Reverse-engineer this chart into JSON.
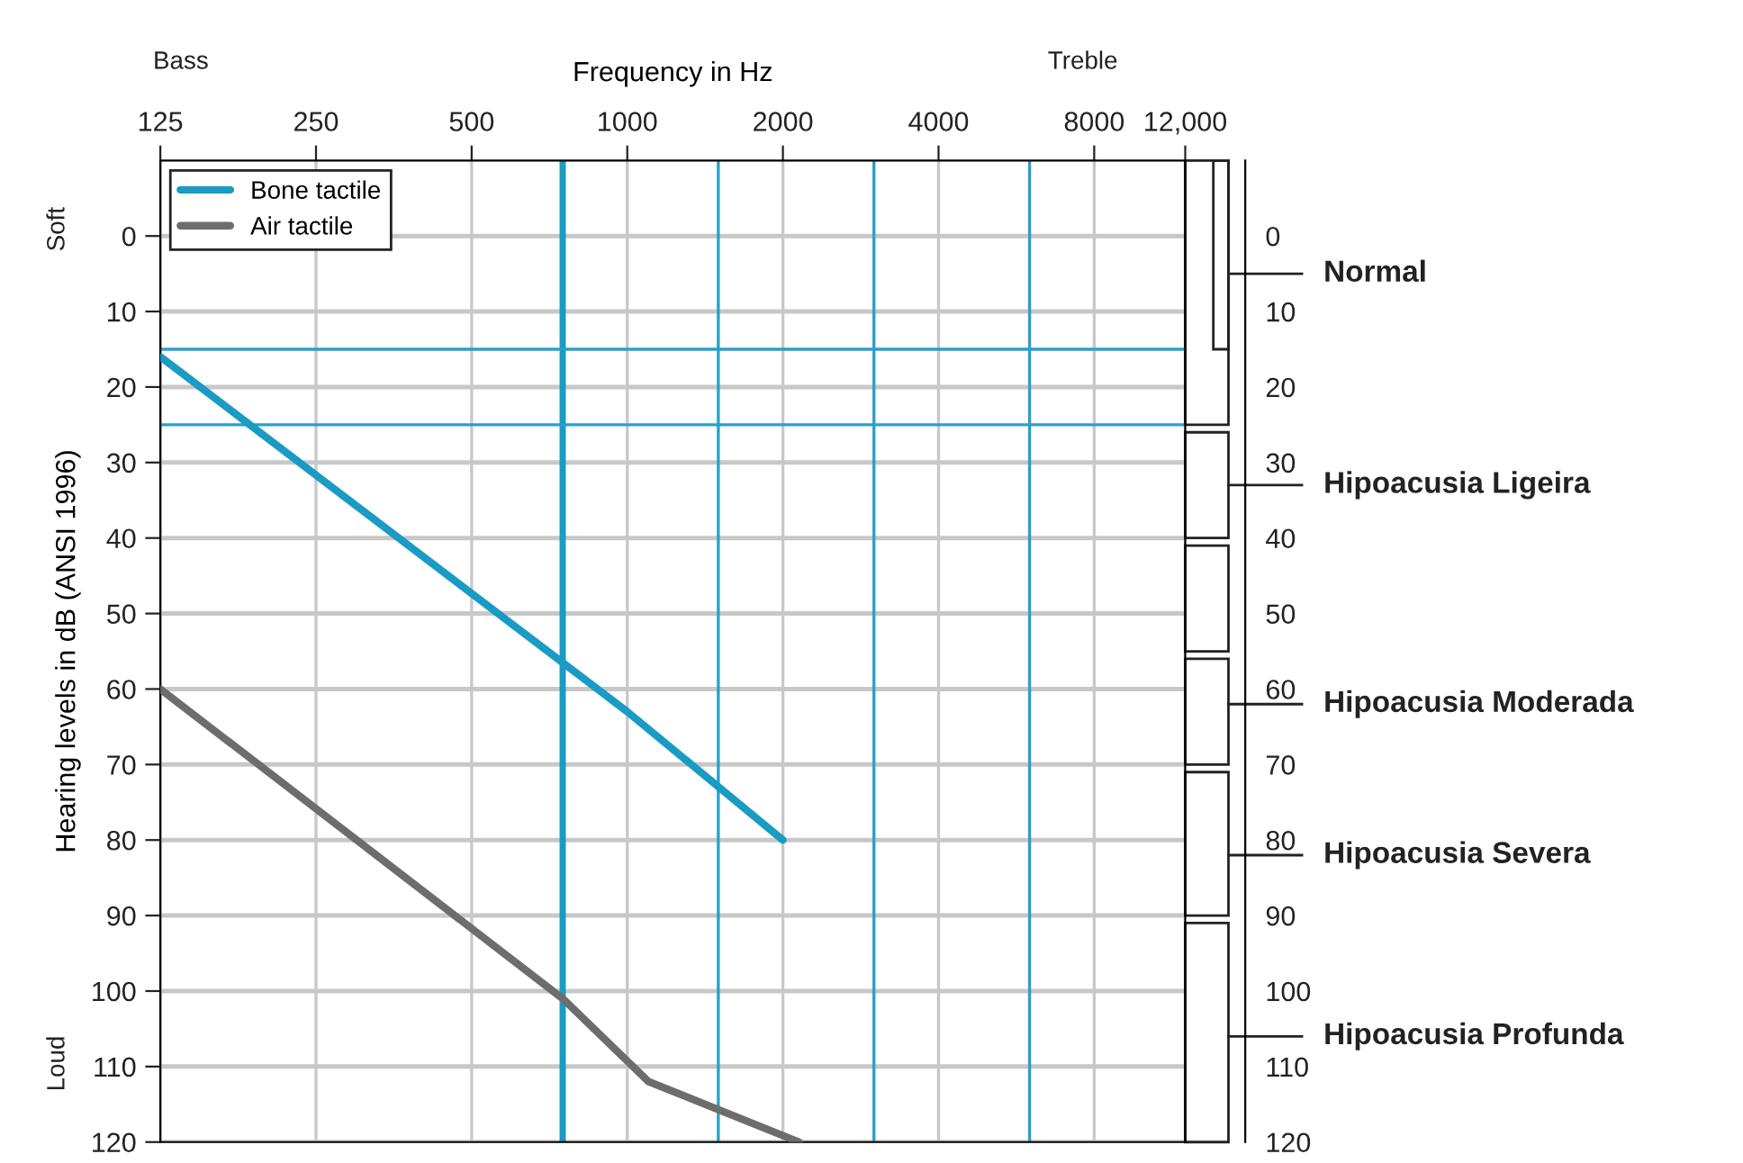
{
  "chart_data": {
    "type": "line",
    "xlabel": "Frequency in Hz",
    "ylabel": "Hearing levels in dB (ANSI 1996)",
    "annotations": [
      "Bass",
      "Treble",
      "Soft",
      "Loud"
    ],
    "log": "x",
    "xlim": [
      125,
      12000
    ],
    "xticks": [
      125,
      250,
      500,
      1000,
      2000,
      4000,
      8000,
      {
        "value": 12000,
        "label": "12,000"
      }
    ],
    "ylim": [
      120,
      -10
    ],
    "yticks": [
      0,
      10,
      20,
      30,
      40,
      50,
      60,
      70,
      80,
      90,
      100,
      110,
      120
    ],
    "y2lim": [
      120,
      -10
    ],
    "y2ticks": [
      0,
      10,
      20,
      30,
      40,
      50,
      60,
      70,
      80,
      90,
      100,
      110,
      120
    ],
    "grid": true,
    "legend": "top left",
    "line_style": "solid",
    "series": [
      {
        "name": "Bone tactile",
        "color": "#1a9bc4",
        "x": [
          125,
          1000,
          2000
        ],
        "values": [
          16,
          63,
          80
        ]
      },
      {
        "name": "Air tactile",
        "color": "#6d6d6d",
        "x": [
          125,
          750,
          1100,
          2150
        ],
        "values": [
          60,
          101,
          112,
          120
        ]
      }
    ],
    "ref_lines": [
      {
        "axis": "x",
        "value": 750,
        "color": "#1a9bc4"
      },
      {
        "axis": "x",
        "value": 1500,
        "color": "#2aa0c8"
      },
      {
        "axis": "x",
        "value": 3000,
        "color": "#2aa0c8"
      },
      {
        "axis": "x",
        "value": 6000,
        "color": "#2aa0c8"
      },
      {
        "axis": "y",
        "value": 15,
        "color": "#2aa0c8"
      },
      {
        "axis": "y",
        "value": 25,
        "color": "#2aa0c8"
      },
      {
        "axis": "y2",
        "value": 5,
        "label": "Normal"
      },
      {
        "axis": "y2",
        "value": 33,
        "label": "Hipoacusia Ligeira"
      },
      {
        "axis": "y2",
        "value": 62,
        "label": "Hipoacusia Moderada"
      },
      {
        "axis": "y2",
        "value": 82,
        "label": "Hipoacusia Severa"
      },
      {
        "axis": "y2",
        "value": 106,
        "label": "Hipoacusia Profunda"
      }
    ]
  }
}
